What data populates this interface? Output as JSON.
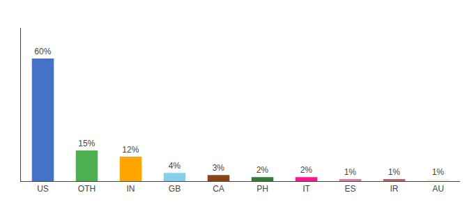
{
  "chart_data": {
    "type": "bar",
    "categories": [
      "US",
      "OTH",
      "IN",
      "GB",
      "CA",
      "PH",
      "IT",
      "ES",
      "IR",
      "AU"
    ],
    "values": [
      60,
      15,
      12,
      4,
      3,
      2,
      2,
      1,
      1,
      1
    ],
    "value_labels": [
      "60%",
      "15%",
      "12%",
      "4%",
      "3%",
      "2%",
      "2%",
      "1%",
      "1%",
      "1%"
    ],
    "colors": [
      "#4472C4",
      "#4CAF50",
      "#FFA500",
      "#87CEEB",
      "#8B4513",
      "#2E7D32",
      "#FF1493",
      "#FF69B4",
      "#CD5C5C",
      "#F5F5DC"
    ],
    "ylim": [
      0,
      75
    ],
    "data_labels": true,
    "tick_labels": "x",
    "grid": false
  }
}
